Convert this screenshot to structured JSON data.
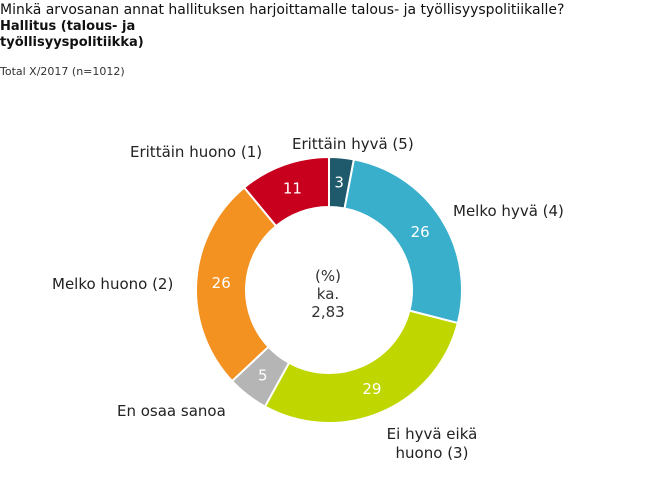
{
  "header": {
    "question": "Minkä arvosanan annat hallituksen harjoittamalle talous- ja työllisyyspolitiikalle?",
    "subtitle": "Hallitus (talous- ja työllisyyspolitiikka)",
    "note": "Total X/2017 (n=1012)"
  },
  "chart_data": {
    "type": "pie",
    "style": "donut",
    "unit_label": "(%)",
    "average_label": "ka.",
    "average_value": "2,83",
    "slices": [
      {
        "label": "Erittäin hyvä (5)",
        "value": 3,
        "color": "#1e5a6b"
      },
      {
        "label": "Melko hyvä (4)",
        "value": 26,
        "color": "#3aafcc"
      },
      {
        "label": "Ei hyvä eikä huono (3)",
        "value": 29,
        "color": "#bfd600"
      },
      {
        "label": "En osaa sanoa",
        "value": 5,
        "color": "#b5b5b5"
      },
      {
        "label": "Melko huono (2)",
        "value": 26,
        "color": "#f39121"
      },
      {
        "label": "Erittäin huono (1)",
        "value": 11,
        "color": "#c8001e"
      }
    ]
  }
}
